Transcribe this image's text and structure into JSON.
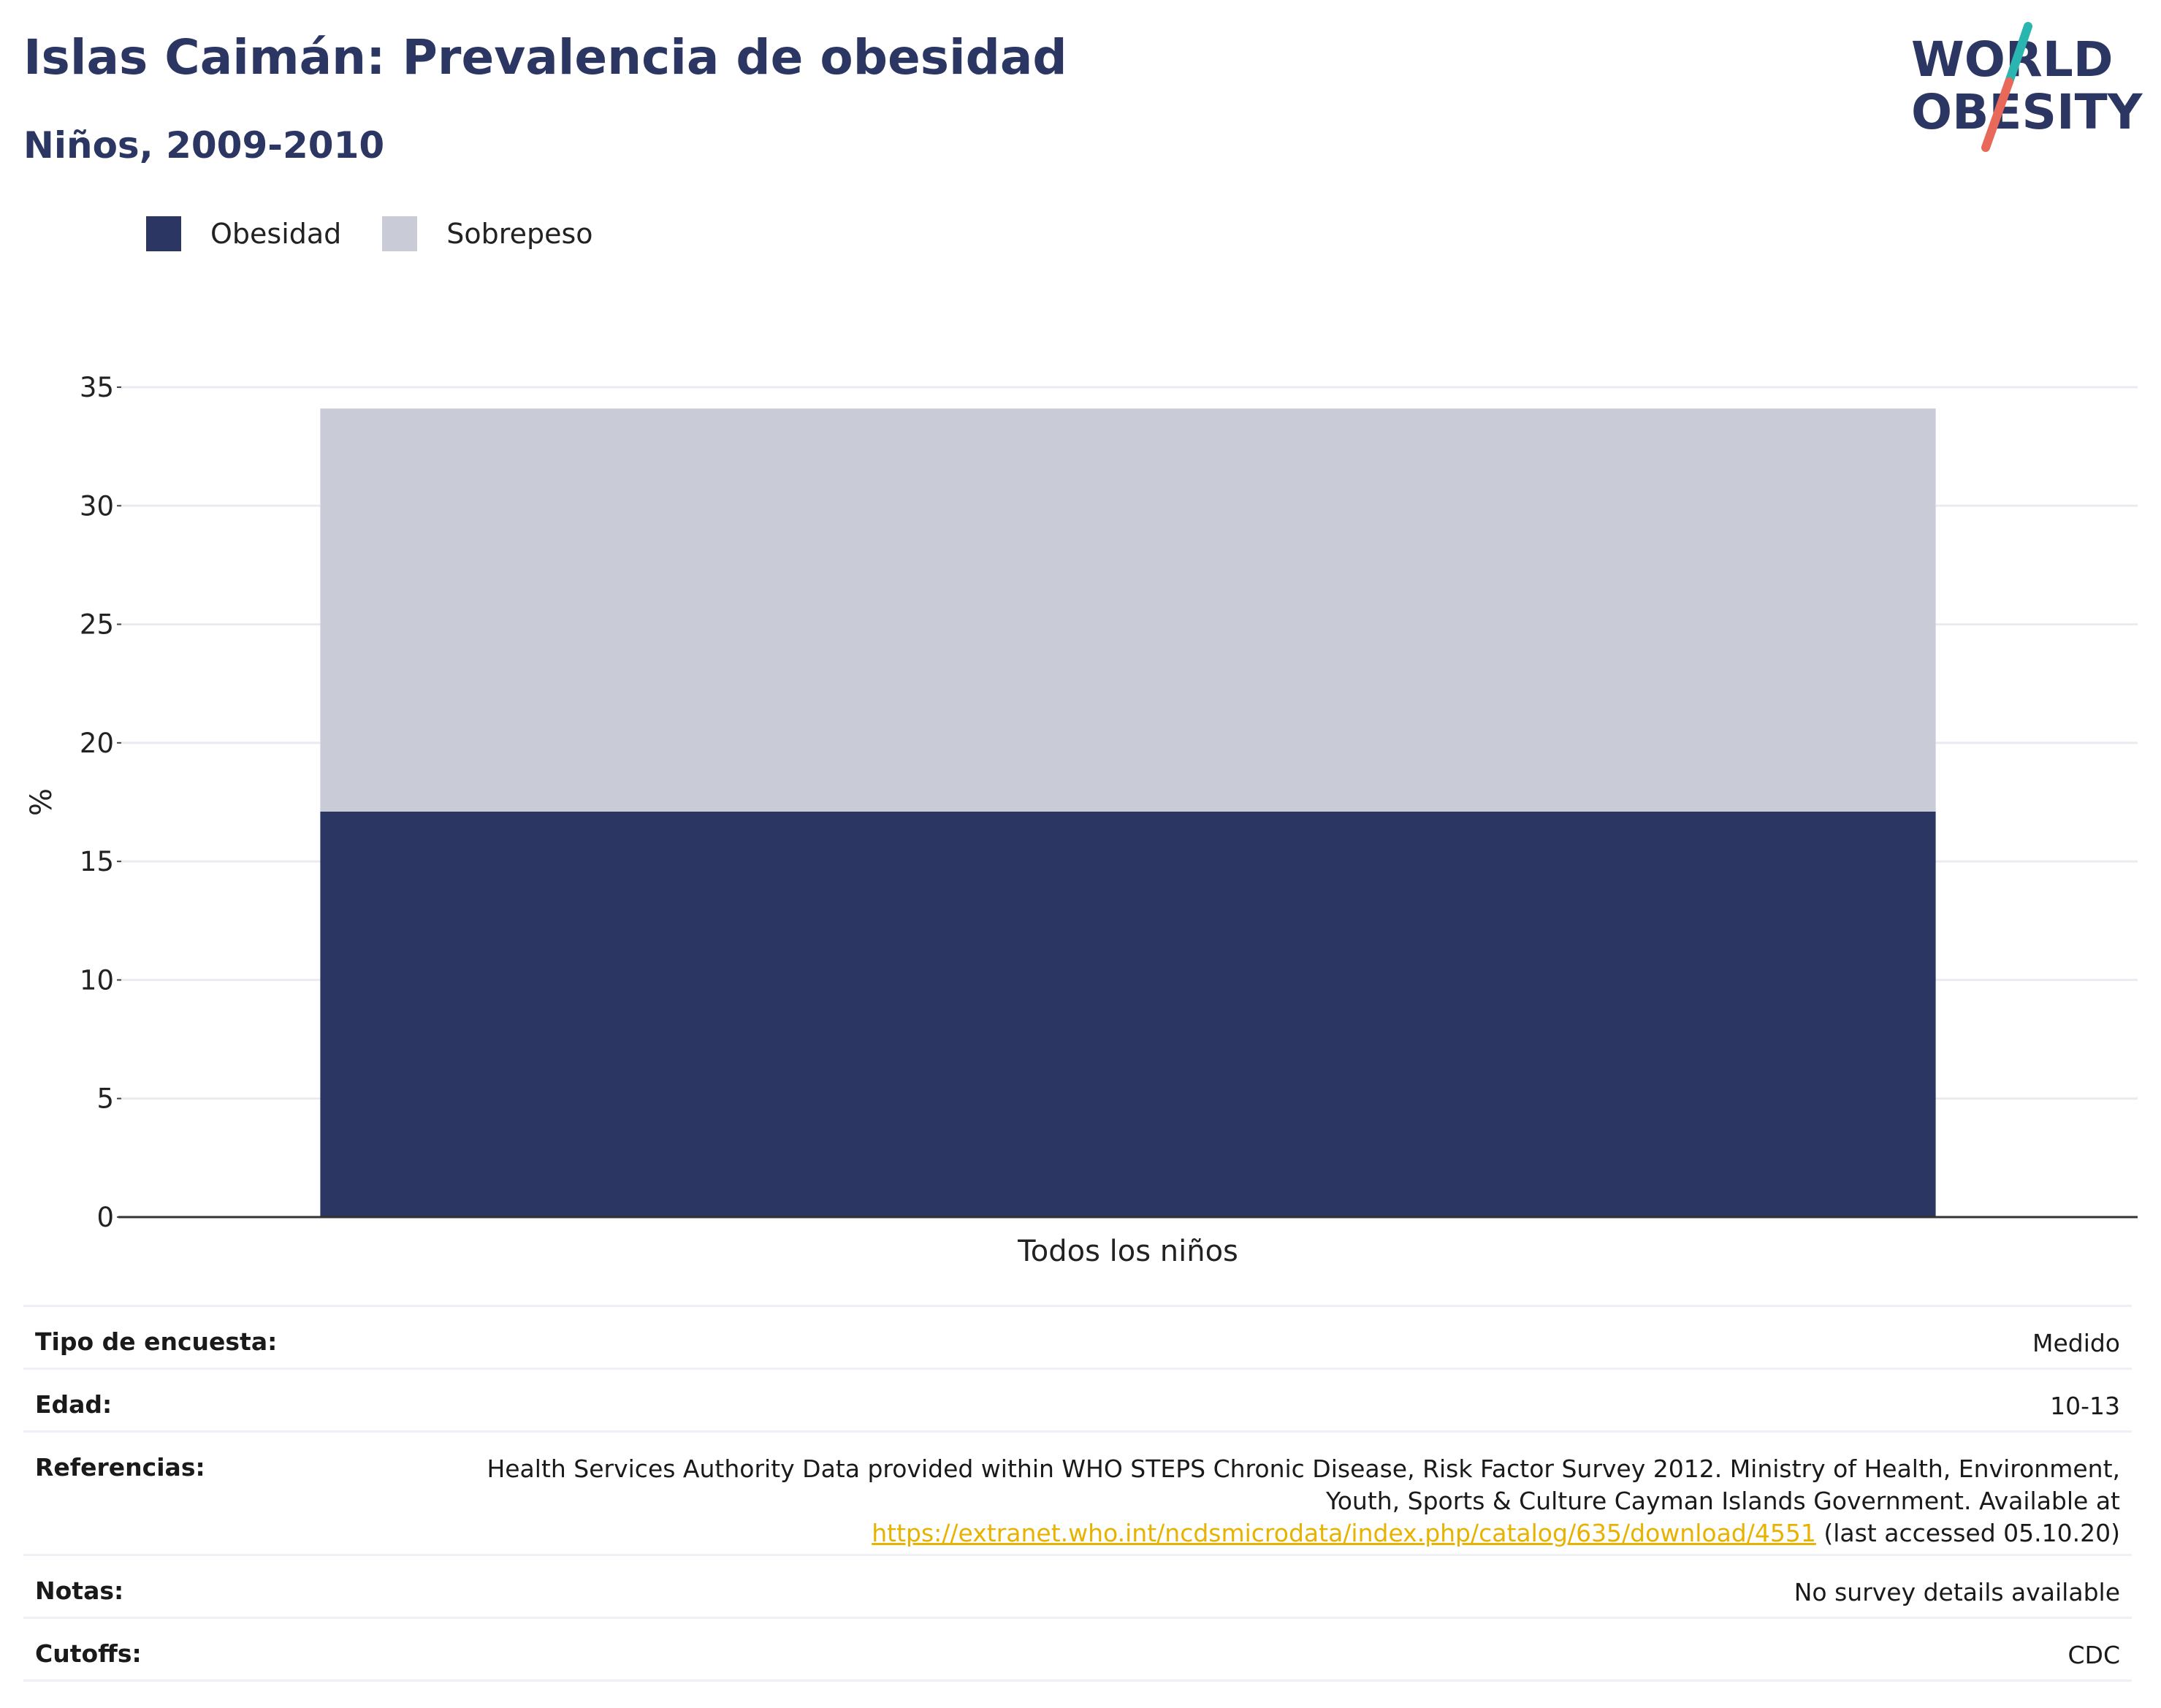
{
  "header": {
    "title": "Islas Caimán: Prevalencia de obesidad",
    "subtitle": "Niños, 2009-2010"
  },
  "logo": {
    "line1": "WORLD",
    "line2": "OBESITY",
    "colors": {
      "text": "#2b3663",
      "slash_teal": "#2bb5b0",
      "slash_red": "#e8685a"
    }
  },
  "legend": {
    "items": [
      {
        "label": "Obesidad",
        "color": "#2b3663"
      },
      {
        "label": "Sobrepeso",
        "color": "#c9ccd7"
      }
    ]
  },
  "chart_data": {
    "type": "bar",
    "stacked": true,
    "categories": [
      "Todos los niños"
    ],
    "series": [
      {
        "name": "Obesidad",
        "values": [
          17.1
        ],
        "color": "#2b3663"
      },
      {
        "name": "Sobrepeso",
        "values": [
          17.0
        ],
        "color": "#c9ccd7"
      }
    ],
    "ylabel": "%",
    "ylim": [
      0,
      35
    ],
    "yticks": [
      0,
      5,
      10,
      15,
      20,
      25,
      30,
      35
    ],
    "grid": true,
    "legend_position": "top-left"
  },
  "details": {
    "survey_type": {
      "label": "Tipo de encuesta:",
      "value": "Medido"
    },
    "age": {
      "label": "Edad:",
      "value": "10-13"
    },
    "references": {
      "label": "Referencias:",
      "line1": "Health Services Authority Data provided within WHO STEPS Chronic Disease, Risk Factor Survey 2012. Ministry of Health, Environment,",
      "line2": "Youth, Sports & Culture Cayman Islands Government. Available at",
      "link": "https://extranet.who.int/ncdsmicrodata/index.php/catalog/635/download/4551",
      "suffix": " (last accessed 05.10.20)"
    },
    "notes": {
      "label": "Notas:",
      "value": "No survey details available"
    },
    "cutoffs": {
      "label": "Cutoffs:",
      "value": "CDC"
    }
  }
}
